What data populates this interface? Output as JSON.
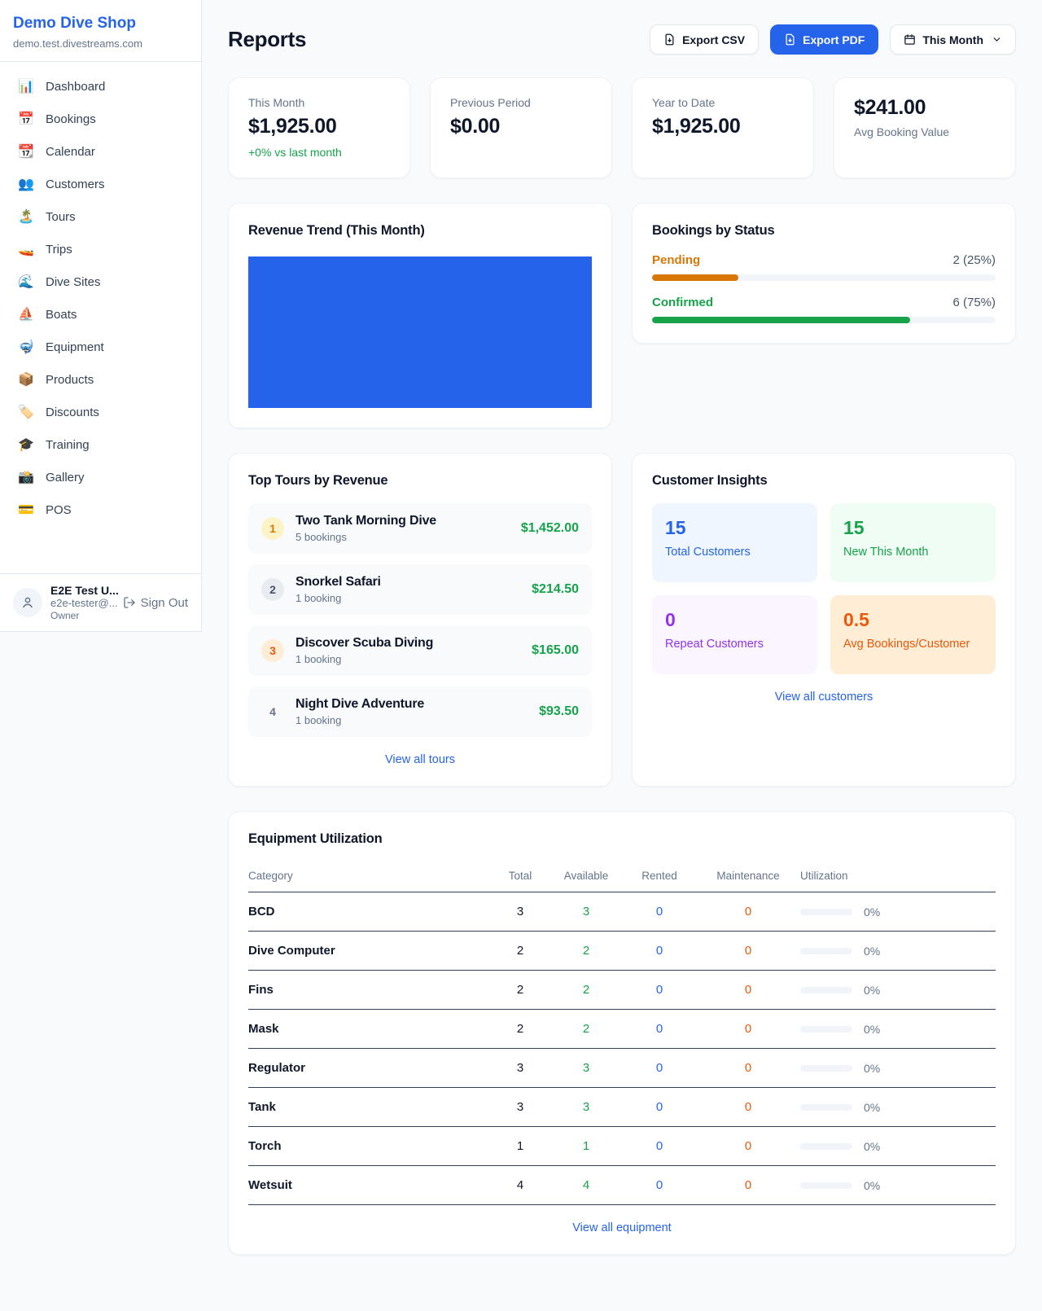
{
  "sidebar": {
    "shop_name": "Demo Dive Shop",
    "domain": "demo.test.divestreams.com",
    "items": [
      {
        "icon": "bar-chart-icon",
        "glyph": "📊",
        "label": "Dashboard"
      },
      {
        "icon": "calendar-17-icon",
        "glyph": "📅",
        "label": "Bookings"
      },
      {
        "icon": "calendar-icon",
        "glyph": "📆",
        "label": "Calendar"
      },
      {
        "icon": "people-icon",
        "glyph": "👥",
        "label": "Customers"
      },
      {
        "icon": "island-icon",
        "glyph": "🏝️",
        "label": "Tours"
      },
      {
        "icon": "speedboat-icon",
        "glyph": "🚤",
        "label": "Trips"
      },
      {
        "icon": "wave-icon",
        "glyph": "🌊",
        "label": "Dive Sites"
      },
      {
        "icon": "sailboat-icon",
        "glyph": "⛵",
        "label": "Boats"
      },
      {
        "icon": "dive-mask-icon",
        "glyph": "🤿",
        "label": "Equipment"
      },
      {
        "icon": "package-icon",
        "glyph": "📦",
        "label": "Products"
      },
      {
        "icon": "tag-icon",
        "glyph": "🏷️",
        "label": "Discounts"
      },
      {
        "icon": "grad-cap-icon",
        "glyph": "🎓",
        "label": "Training"
      },
      {
        "icon": "camera-icon",
        "glyph": "📸",
        "label": "Gallery"
      },
      {
        "icon": "credit-card-icon",
        "glyph": "💳",
        "label": "POS"
      }
    ],
    "user": {
      "name": "E2E Test U...",
      "email": "e2e-tester@...",
      "role": "Owner",
      "sign_out": "Sign Out"
    }
  },
  "header": {
    "title": "Reports",
    "export_csv": "Export CSV",
    "export_pdf": "Export PDF",
    "period": "This Month"
  },
  "stats": [
    {
      "label": "This Month",
      "value": "$1,925.00",
      "delta": "+0% vs last month"
    },
    {
      "label": "Previous Period",
      "value": "$0.00"
    },
    {
      "label": "Year to Date",
      "value": "$1,925.00"
    },
    {
      "label": "Avg Booking Value",
      "value": "$241.00"
    }
  ],
  "revenue_trend": {
    "title": "Revenue Trend (This Month)",
    "bar_color": "#2563eb"
  },
  "bookings_by_status": {
    "title": "Bookings by Status",
    "rows": [
      {
        "label": "Pending",
        "value": "2 (25%)",
        "pct": 25,
        "color": "#d97706"
      },
      {
        "label": "Confirmed",
        "value": "6 (75%)",
        "pct": 75,
        "color": "#16a34a"
      }
    ]
  },
  "top_tours": {
    "title": "Top Tours by Revenue",
    "rows": [
      {
        "rank": "1",
        "name": "Two Tank Morning Dive",
        "sub": "5 bookings",
        "amount": "$1,452.00"
      },
      {
        "rank": "2",
        "name": "Snorkel Safari",
        "sub": "1 booking",
        "amount": "$214.50"
      },
      {
        "rank": "3",
        "name": "Discover Scuba Diving",
        "sub": "1 booking",
        "amount": "$165.00"
      },
      {
        "rank": "4",
        "name": "Night Dive Adventure",
        "sub": "1 booking",
        "amount": "$93.50"
      }
    ],
    "view_all": "View all tours"
  },
  "customer_insights": {
    "title": "Customer Insights",
    "tiles": [
      {
        "value": "15",
        "label": "Total Customers",
        "color": "#2563eb"
      },
      {
        "value": "15",
        "label": "New This Month",
        "color": "#16a34a"
      },
      {
        "value": "0",
        "label": "Repeat Customers",
        "color": "#9333ea"
      },
      {
        "value": "0.5",
        "label": "Avg Bookings/Customer",
        "color": "#ea580c"
      }
    ],
    "view_all": "View all customers"
  },
  "equipment": {
    "title": "Equipment Utilization",
    "columns": [
      "Category",
      "Total",
      "Available",
      "Rented",
      "Maintenance",
      "Utilization"
    ],
    "rows": [
      {
        "category": "BCD",
        "total": "3",
        "available": "3",
        "rented": "0",
        "maintenance": "0",
        "utilization": "0%",
        "utilization_pct": 0
      },
      {
        "category": "Dive Computer",
        "total": "2",
        "available": "2",
        "rented": "0",
        "maintenance": "0",
        "utilization": "0%",
        "utilization_pct": 0
      },
      {
        "category": "Fins",
        "total": "2",
        "available": "2",
        "rented": "0",
        "maintenance": "0",
        "utilization": "0%",
        "utilization_pct": 0
      },
      {
        "category": "Mask",
        "total": "2",
        "available": "2",
        "rented": "0",
        "maintenance": "0",
        "utilization": "0%",
        "utilization_pct": 0
      },
      {
        "category": "Regulator",
        "total": "3",
        "available": "3",
        "rented": "0",
        "maintenance": "0",
        "utilization": "0%",
        "utilization_pct": 0
      },
      {
        "category": "Tank",
        "total": "3",
        "available": "3",
        "rented": "0",
        "maintenance": "0",
        "utilization": "0%",
        "utilization_pct": 0
      },
      {
        "category": "Torch",
        "total": "1",
        "available": "1",
        "rented": "0",
        "maintenance": "0",
        "utilization": "0%",
        "utilization_pct": 0
      },
      {
        "category": "Wetsuit",
        "total": "4",
        "available": "4",
        "rented": "0",
        "maintenance": "0",
        "utilization": "0%",
        "utilization_pct": 0
      }
    ],
    "view_all": "View all equipment"
  }
}
